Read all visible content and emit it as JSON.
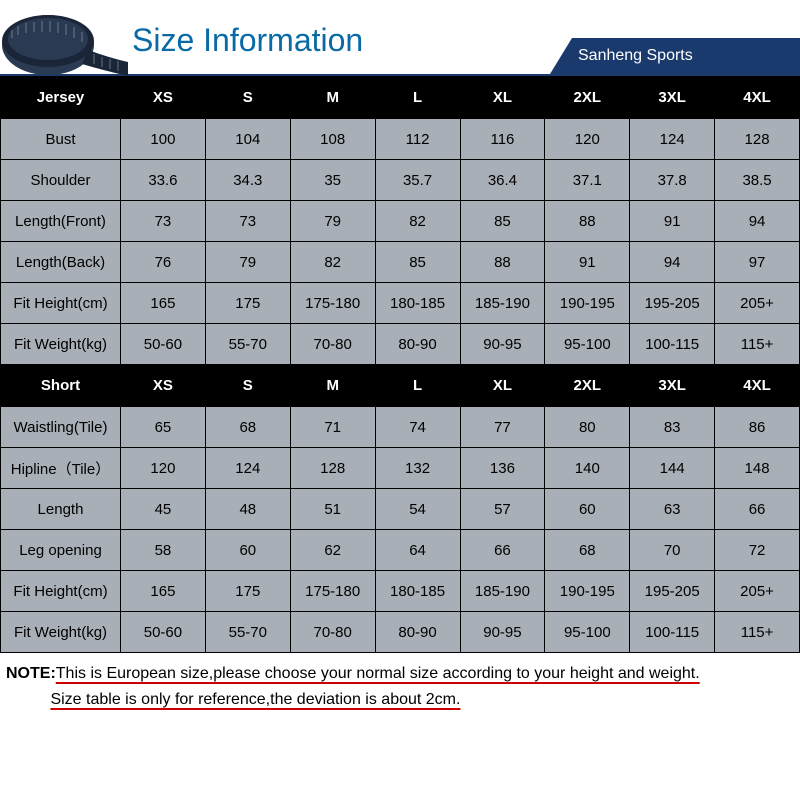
{
  "header": {
    "title": "Size Information",
    "brand": "Sanheng Sports",
    "title_color": "#0a6aa5",
    "brand_bg": "#1a3a6e"
  },
  "sizes": [
    "XS",
    "S",
    "M",
    "L",
    "XL",
    "2XL",
    "3XL",
    "4XL"
  ],
  "sections": [
    {
      "name": "Jersey",
      "rows": [
        {
          "label": "Bust",
          "v": [
            "100",
            "104",
            "108",
            "112",
            "116",
            "120",
            "124",
            "128"
          ]
        },
        {
          "label": "Shoulder",
          "v": [
            "33.6",
            "34.3",
            "35",
            "35.7",
            "36.4",
            "37.1",
            "37.8",
            "38.5"
          ]
        },
        {
          "label": "Length(Front)",
          "v": [
            "73",
            "73",
            "79",
            "82",
            "85",
            "88",
            "91",
            "94"
          ]
        },
        {
          "label": "Length(Back)",
          "v": [
            "76",
            "79",
            "82",
            "85",
            "88",
            "91",
            "94",
            "97"
          ]
        },
        {
          "label": "Fit Height(cm)",
          "v": [
            "165",
            "175",
            "175-180",
            "180-185",
            "185-190",
            "190-195",
            "195-205",
            "205+"
          ]
        },
        {
          "label": "Fit Weight(kg)",
          "v": [
            "50-60",
            "55-70",
            "70-80",
            "80-90",
            "90-95",
            "95-100",
            "100-115",
            "115+"
          ]
        }
      ]
    },
    {
      "name": "Short",
      "rows": [
        {
          "label": "Waistling(Tile)",
          "v": [
            "65",
            "68",
            "71",
            "74",
            "77",
            "80",
            "83",
            "86"
          ]
        },
        {
          "label": "Hipline（Tile）",
          "v": [
            "120",
            "124",
            "128",
            "132",
            "136",
            "140",
            "144",
            "148"
          ]
        },
        {
          "label": "Length",
          "v": [
            "45",
            "48",
            "51",
            "54",
            "57",
            "60",
            "63",
            "66"
          ]
        },
        {
          "label": "Leg opening",
          "v": [
            "58",
            "60",
            "62",
            "64",
            "66",
            "68",
            "70",
            "72"
          ]
        },
        {
          "label": "Fit Height(cm)",
          "v": [
            "165",
            "175",
            "175-180",
            "180-185",
            "185-190",
            "190-195",
            "195-205",
            "205+"
          ]
        },
        {
          "label": "Fit Weight(kg)",
          "v": [
            "50-60",
            "55-70",
            "70-80",
            "80-90",
            "90-95",
            "95-100",
            "100-115",
            "115+"
          ]
        }
      ]
    }
  ],
  "note": {
    "label": "NOTE:",
    "line1": "This is European size,please choose your normal size according to your height and weight.",
    "line2": "Size table is only for reference,the deviation is about 2cm."
  },
  "styling": {
    "header_row_bg": "#000000",
    "header_row_fg": "#ffffff",
    "data_row_bg": "#a9afb6",
    "data_row_fg": "#000000",
    "border_color": "#000000",
    "underline_color": "#d00000",
    "page_bg": "#ffffff"
  }
}
